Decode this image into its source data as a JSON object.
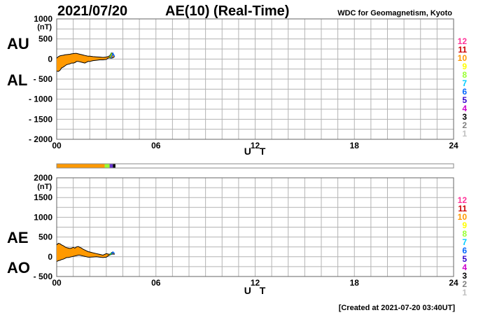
{
  "header": {
    "date": "2021/07/20",
    "title": "AE(10) (Real-Time)",
    "source": "WDC for Geomagnetism, Kyoto"
  },
  "footer": {
    "created": "[Created at 2021-07-20 03:40UT]"
  },
  "colors": {
    "fill": "#ff9900",
    "legend": [
      "#c0c0c0",
      "#808080",
      "#000000",
      "#cc00cc",
      "#3300cc",
      "#0066ff",
      "#00ccff",
      "#99ff33",
      "#ffff00",
      "#ff9900",
      "#cc0000",
      "#ff3399"
    ]
  },
  "chart_data": [
    {
      "type": "area",
      "series_labels": [
        "AU",
        "AL"
      ],
      "unit": "(nT)",
      "xlabel": "U T",
      "xlim": [
        0,
        24
      ],
      "xticks": [
        0,
        6,
        12,
        18,
        24
      ],
      "xtick_labels": [
        "00",
        "06",
        "12",
        "18",
        "24"
      ],
      "ylim": [
        -2000,
        1000
      ],
      "yticks": [
        1000,
        500,
        0,
        -500,
        -1000,
        -1500,
        -2000
      ],
      "ytick_labels": [
        "1000",
        "500",
        "0",
        "- 500",
        "- 1000",
        "- 1500",
        "- 2000"
      ],
      "legend": [
        "12",
        "11",
        "10",
        "9",
        "8",
        "7",
        "6",
        "5",
        "4",
        "3",
        "2",
        "1"
      ],
      "x": [
        0,
        0.1,
        0.2,
        0.3,
        0.4,
        0.5,
        0.6,
        0.7,
        0.8,
        0.9,
        1.0,
        1.1,
        1.2,
        1.3,
        1.4,
        1.5,
        1.6,
        1.7,
        1.8,
        1.9,
        2.0,
        2.2,
        2.4,
        2.6,
        2.8,
        3.0,
        3.1,
        3.2,
        3.3,
        3.4,
        3.5
      ],
      "upper": [
        20,
        60,
        80,
        90,
        95,
        105,
        110,
        115,
        120,
        130,
        135,
        140,
        140,
        130,
        120,
        110,
        100,
        90,
        80,
        70,
        70,
        60,
        55,
        50,
        40,
        50,
        60,
        80,
        150,
        140,
        60
      ],
      "lower": [
        -300,
        -310,
        -280,
        -220,
        -200,
        -170,
        -140,
        -130,
        -120,
        -100,
        -100,
        -90,
        -60,
        -60,
        -70,
        -80,
        -90,
        -100,
        -80,
        -60,
        -60,
        -40,
        -30,
        -20,
        -20,
        -10,
        20,
        30,
        20,
        30,
        60
      ]
    },
    {
      "type": "area",
      "series_labels": [
        "AE",
        "AO"
      ],
      "unit": "(nT)",
      "xlabel": "U T",
      "xlim": [
        0,
        24
      ],
      "xticks": [
        0,
        6,
        12,
        18,
        24
      ],
      "xtick_labels": [
        "00",
        "06",
        "12",
        "18",
        "24"
      ],
      "ylim": [
        -500,
        2000
      ],
      "yticks": [
        2000,
        1500,
        1000,
        500,
        0,
        -500
      ],
      "ytick_labels": [
        "2000",
        "1500",
        "1000",
        "500",
        "0",
        "- 500"
      ],
      "legend": [
        "12",
        "11",
        "10",
        "9",
        "8",
        "7",
        "6",
        "5",
        "4",
        "3",
        "2",
        "1"
      ],
      "x": [
        0,
        0.1,
        0.2,
        0.3,
        0.4,
        0.5,
        0.6,
        0.7,
        0.8,
        0.9,
        1.0,
        1.1,
        1.2,
        1.3,
        1.4,
        1.5,
        1.6,
        1.7,
        1.8,
        1.9,
        2.0,
        2.2,
        2.4,
        2.6,
        2.8,
        3.0,
        3.1,
        3.2,
        3.3,
        3.4,
        3.5
      ],
      "upper": [
        300,
        340,
        330,
        300,
        280,
        250,
        230,
        220,
        210,
        220,
        240,
        220,
        250,
        260,
        240,
        220,
        190,
        170,
        150,
        130,
        120,
        100,
        80,
        60,
        40,
        80,
        70,
        60,
        100,
        120,
        80
      ],
      "lower": [
        -120,
        -100,
        -90,
        -70,
        -60,
        -40,
        -20,
        -20,
        -10,
        0,
        10,
        20,
        30,
        40,
        40,
        30,
        20,
        10,
        0,
        -10,
        -10,
        -5,
        0,
        -10,
        -20,
        -10,
        20,
        40,
        60,
        70,
        60
      ]
    }
  ],
  "timeline": {
    "xlim": [
      0,
      24
    ],
    "segments": [
      {
        "start": 0,
        "end": 2.9,
        "color": "#ff9900"
      },
      {
        "start": 2.9,
        "end": 3.2,
        "color": "#99ff33"
      },
      {
        "start": 3.2,
        "end": 3.4,
        "color": "#6633cc"
      },
      {
        "start": 3.4,
        "end": 3.55,
        "color": "#000000"
      }
    ]
  }
}
